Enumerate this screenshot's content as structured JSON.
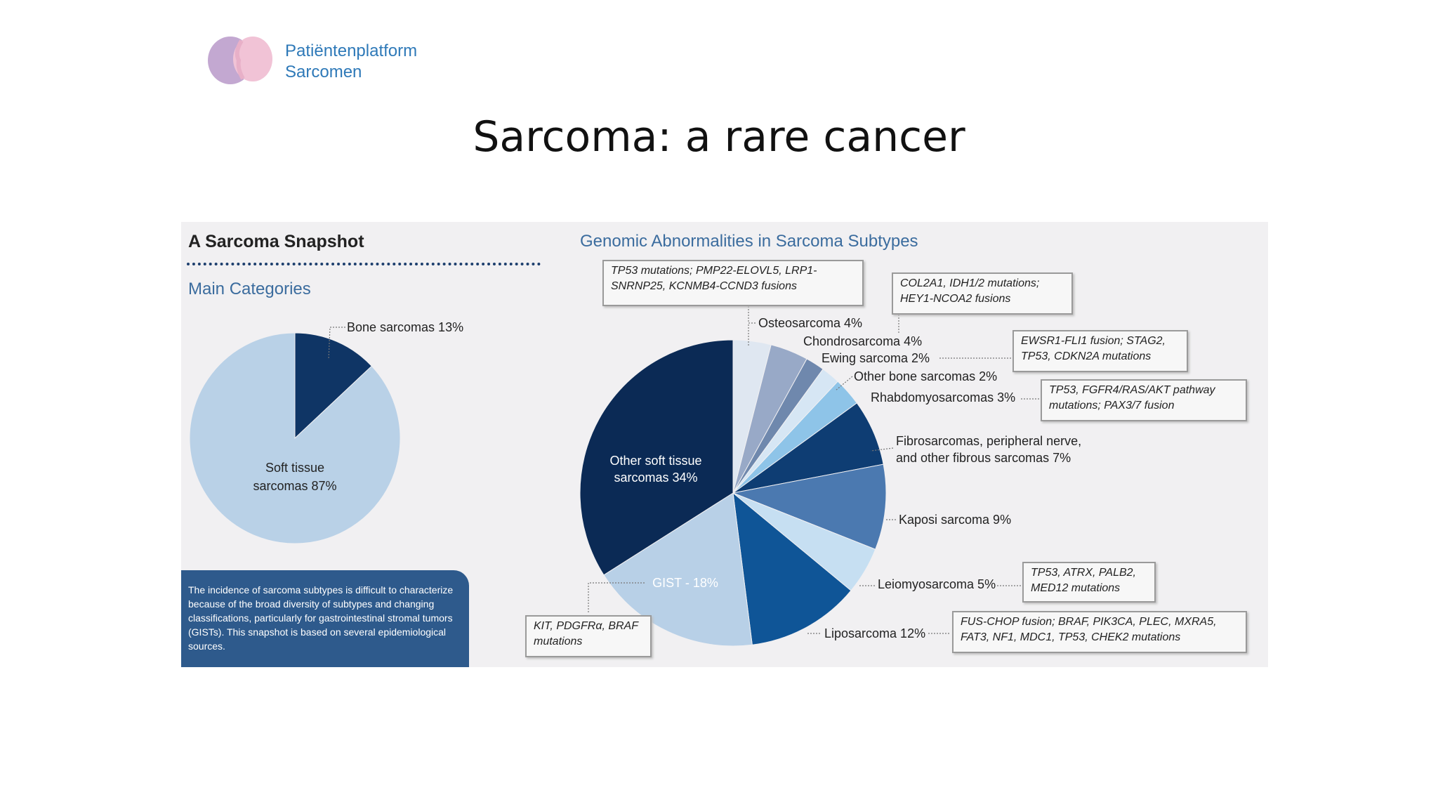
{
  "logo": {
    "line1": "Patiëntenplatform",
    "line2": "Sarcomen"
  },
  "slide_title": "Sarcoma: a rare cancer",
  "infographic": {
    "snapshot_title": "A Sarcoma Snapshot",
    "main_categories": "Main Categories",
    "genomic_title": "Genomic Abnormalities in Sarcoma Subtypes",
    "note": "The incidence of sarcoma subtypes is difficult to characterize because of the broad diversity of subtypes and changing classifications, particularly for gastrointestinal stromal tumors (GISTs). This snapshot is based on several epidemiological sources.",
    "boxes": {
      "osteo": "TP53 mutations; PMP22-ELOVL5, LRP1-SNRNP25, KCNMB4-CCND3 fusions",
      "chondro": "COL2A1, IDH1/2 mutations; HEY1-NCOA2 fusions",
      "ewing": "EWSR1-FLI1 fusion; STAG2, TP53, CDKN2A mutations",
      "rhabdo": "TP53, FGFR4/RAS/AKT pathway mutations; PAX3/7 fusion",
      "leio": "TP53, ATRX, PALB2, MED12 mutations",
      "lipo": "FUS-CHOP fusion; BRAF, PIK3CA, PLEC, MXRA5, FAT3, NF1, MDC1, TP53, CHEK2 mutations",
      "gist": "KIT, PDGFRα, BRAF mutations"
    }
  },
  "chart_data": [
    {
      "type": "pie",
      "title": "Main Categories",
      "slices": [
        {
          "label": "Bone sarcomas 13%",
          "value": 13,
          "color": "#0f3565"
        },
        {
          "label": "Soft tissue sarcomas 87%",
          "value": 87,
          "color": "#b9d1e7"
        }
      ]
    },
    {
      "type": "pie",
      "title": "Genomic Abnormalities in Sarcoma Subtypes",
      "slices": [
        {
          "label": "Osteosarcoma 4%",
          "value": 4,
          "color": "#dfe7f1"
        },
        {
          "label": "Chondrosarcoma 4%",
          "value": 4,
          "color": "#98a9c7"
        },
        {
          "label": "Ewing sarcoma 2%",
          "value": 2,
          "color": "#6f88ad"
        },
        {
          "label": "Other bone sarcomas 2%",
          "value": 2,
          "color": "#d6e6f4"
        },
        {
          "label": "Rhabdomyosarcomas 3%",
          "value": 3,
          "color": "#8ec4e8"
        },
        {
          "label": "Fibrosarcomas, peripheral nerve, and other fibrous sarcomas 7%",
          "value": 7,
          "color": "#0e3d73"
        },
        {
          "label": "Kaposi sarcoma 9%",
          "value": 9,
          "color": "#4b79b0"
        },
        {
          "label": "Leiomyosarcoma 5%",
          "value": 5,
          "color": "#c6dff2"
        },
        {
          "label": "Liposarcoma 12%",
          "value": 12,
          "color": "#0f5597"
        },
        {
          "label": "GIST - 18%",
          "value": 18,
          "color": "#b8d0e7"
        },
        {
          "label": "Other soft tissue sarcomas 34%",
          "value": 34,
          "color": "#0b2a55"
        }
      ]
    }
  ]
}
